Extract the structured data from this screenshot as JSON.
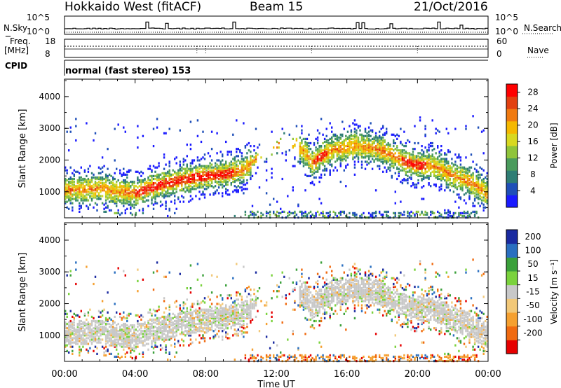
{
  "header": {
    "station": "Hokkaido West (fitACF)",
    "beam": "Beam 15",
    "date": "21/Oct/2016"
  },
  "strip": {
    "nsky_label": "N.Sky",
    "nsearch_label": "N.Search",
    "noise_ticks": [
      "10^5",
      "10^0"
    ],
    "freq_label": "Freq.",
    "freq_unit": "[MHz]",
    "freq_ticks": [
      "18",
      "8"
    ],
    "nave_label": "Nave",
    "nave_ticks": [
      "60",
      "0"
    ],
    "cpid_label": "CPID",
    "cpid_value": "normal (fast stereo) 153"
  },
  "colors": {
    "power_scale": [
      "#1a1aff",
      "#1f4fb8",
      "#2e7d74",
      "#4a9b5c",
      "#8fc43a",
      "#d8d820",
      "#f5b800",
      "#f07a10",
      "#e24010",
      "#ff0000"
    ],
    "velocity_scale": [
      "#e60000",
      "#f06a10",
      "#f5a030",
      "#f2c878",
      "#c8c8c8",
      "#7ad23c",
      "#3aa03a",
      "#2a6fc0",
      "#1a2aa0"
    ]
  },
  "chart_data": [
    {
      "type": "heatmap",
      "panel": "power",
      "title": "",
      "xlabel": "Time UT",
      "ylabel": "Slant Range [km]",
      "xticks": [
        "00:00",
        "04:00",
        "08:00",
        "12:00",
        "16:00",
        "20:00",
        "00:00"
      ],
      "xlim_hours": [
        0,
        24
      ],
      "yticks": [
        "1000",
        "2000",
        "3000",
        "4000"
      ],
      "ylim_km": [
        180,
        4550
      ],
      "colorbar": {
        "label": "Power [dB]",
        "ticks": [
          "4",
          "8",
          "12",
          "16",
          "20",
          "24",
          "28"
        ],
        "range": [
          0,
          30
        ]
      },
      "echo_band_center_km": [
        [
          0,
          1050
        ],
        [
          2,
          1100
        ],
        [
          3,
          1000
        ],
        [
          4,
          950
        ],
        [
          5,
          1150
        ],
        [
          6,
          1300
        ],
        [
          7,
          1400
        ],
        [
          8,
          1500
        ],
        [
          9,
          1550
        ],
        [
          10,
          1650
        ],
        [
          11,
          2100
        ],
        [
          12.5,
          2600
        ],
        [
          13.5,
          2300
        ],
        [
          14,
          1900
        ],
        [
          15,
          2300
        ],
        [
          16.5,
          2450
        ],
        [
          18,
          2300
        ],
        [
          19,
          2000
        ],
        [
          19.8,
          1850
        ],
        [
          21,
          1800
        ],
        [
          22,
          1500
        ],
        [
          23,
          1300
        ],
        [
          24,
          900
        ]
      ],
      "peak_power_db": 28
    },
    {
      "type": "heatmap",
      "panel": "velocity",
      "title": "",
      "xlabel": "Time UT",
      "ylabel": "Slant Range [km]",
      "xticks": [
        "00:00",
        "04:00",
        "08:00",
        "12:00",
        "16:00",
        "20:00",
        "00:00"
      ],
      "xlim_hours": [
        0,
        24
      ],
      "yticks": [
        "1000",
        "2000",
        "3000",
        "4000"
      ],
      "ylim_km": [
        180,
        4550
      ],
      "colorbar": {
        "label": "Velocity [m s⁻¹]",
        "ticks": [
          "200",
          "100",
          "50",
          "15",
          "-15",
          "-50",
          "-100",
          "-200"
        ],
        "range": [
          -250,
          250
        ]
      },
      "dominant_velocity": "ground scatter (-15 to 15 m s⁻¹)"
    }
  ]
}
